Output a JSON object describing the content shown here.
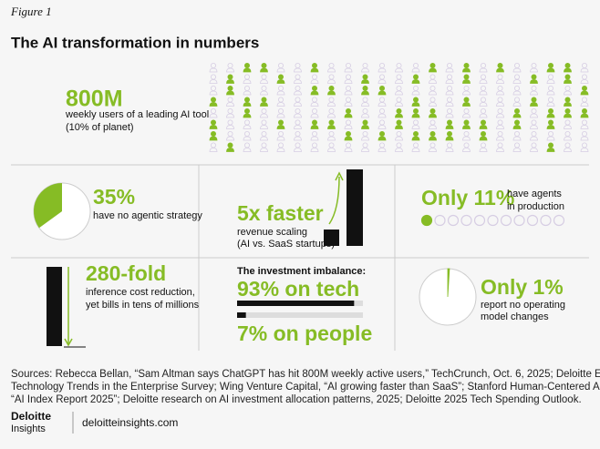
{
  "header": {
    "figure": "Figure 1",
    "title": "The AI transformation in numbers"
  },
  "users": {
    "headline": "800M",
    "lines": [
      "weekly users of a leading AI tool",
      "(10% of planet)"
    ]
  },
  "strategy": {
    "headline": "35%",
    "value": 35,
    "lines": [
      "have no agentic strategy"
    ]
  },
  "revenue": {
    "headline": "5x faster",
    "lines": [
      "revenue scaling",
      "(AI vs. SaaS startups)"
    ]
  },
  "agents": {
    "headline": "Only 11%",
    "lines": [
      "have agents",
      "in production"
    ]
  },
  "cost": {
    "headline": "280-fold",
    "lines": [
      "inference cost reduction,",
      "yet bills in tens of millions"
    ]
  },
  "investment": {
    "label": "The investment imbalance:",
    "tech": {
      "headline": "93% on tech",
      "value": 93
    },
    "people": {
      "headline": "7% on people",
      "value": 7
    }
  },
  "operating": {
    "headline": "Only 1%",
    "value": 1,
    "lines": [
      "report no operating",
      "model changes"
    ]
  },
  "sources": [
    "Sources: Rebecca Bellan, “Sam Altman says ChatGPT has hit 800M weekly active users,” TechCrunch, Oct. 6, 2025; Deloitte Emerging",
    "Technology Trends in the Enterprise Survey; Wing Venture Capital, “AI growing faster than SaaS”; Stanford Human-Centered AI Institute,",
    "“AI Index Report 2025”; Deloitte research on AI investment allocation patterns, 2025; Deloitte 2025 Tech Spending Outlook."
  ],
  "footer": {
    "brand": [
      "Deloitte",
      "Insights"
    ],
    "url": "deloitteinsights.com"
  }
}
